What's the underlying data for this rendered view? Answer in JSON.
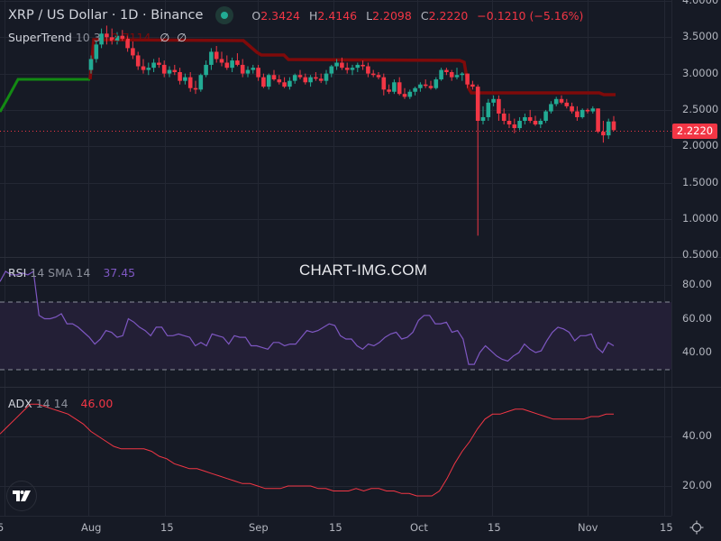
{
  "header": {
    "symbol_title": "XRP / US Dollar · 1D · Binance",
    "ohlc": {
      "o_label": "O",
      "o_value": "2.3424",
      "h_label": "H",
      "h_value": "2.4146",
      "l_label": "L",
      "l_value": "2.2098",
      "c_label": "C",
      "c_value": "2.2220",
      "change": "−0.1210 (−5.16%)"
    }
  },
  "indicators": {
    "supertrend": {
      "name": "SuperTrend",
      "params": "10 3",
      "value": "2.7114",
      "extra1": "∅",
      "extra2": "∅"
    },
    "rsi": {
      "name": "RSI",
      "params": "14 SMA 14",
      "value": "37.45"
    },
    "adx": {
      "name": "ADX",
      "params": "14 14",
      "value": "46.00"
    }
  },
  "watermark": "CHART-IMG.COM",
  "price_axis": {
    "labels": [
      "4.0000",
      "3.5000",
      "3.0000",
      "2.5000",
      "2.0000",
      "1.5000",
      "1.0000",
      "0.5000"
    ],
    "current_price_tag": "2.2220"
  },
  "rsi_axis": {
    "labels": [
      "80.00",
      "60.00",
      "40.00"
    ]
  },
  "adx_axis": {
    "labels": [
      "40.00",
      "20.00"
    ]
  },
  "time_axis": {
    "labels": [
      "5",
      "Aug",
      "15",
      "Sep",
      "15",
      "Oct",
      "15",
      "Nov",
      "15"
    ]
  },
  "colors": {
    "background": "#161a25",
    "up": "#22ab94",
    "down": "#f23645",
    "supertrend_up": "#138a13",
    "supertrend_down": "#7f0a0a",
    "rsi_line": "#7e57c2",
    "rsi_band": "#231f36",
    "adx_line": "#f23645",
    "grid": "#232733"
  },
  "chart_data": [
    {
      "type": "candlestick",
      "title": "XRP / US Dollar · 1D · Binance",
      "xlabel": "",
      "ylabel": "Price (USD)",
      "ylim": [
        0.5,
        4.0
      ],
      "x_ticks": [
        "5",
        "Aug",
        "15",
        "Sep",
        "15",
        "Oct",
        "15",
        "Nov",
        "15"
      ],
      "last": {
        "open": 2.3424,
        "high": 2.4146,
        "low": 2.2098,
        "close": 2.222,
        "change": -0.121,
        "change_pct": -5.16
      },
      "candles_ohlc_approx": [
        [
          3.05,
          3.25,
          3.0,
          3.2
        ],
        [
          3.2,
          3.45,
          3.15,
          3.4
        ],
        [
          3.4,
          3.62,
          3.35,
          3.55
        ],
        [
          3.55,
          3.66,
          3.4,
          3.5
        ],
        [
          3.5,
          3.62,
          3.4,
          3.45
        ],
        [
          3.45,
          3.57,
          3.4,
          3.52
        ],
        [
          3.52,
          3.6,
          3.45,
          3.48
        ],
        [
          3.48,
          3.55,
          3.3,
          3.35
        ],
        [
          3.35,
          3.45,
          3.2,
          3.25
        ],
        [
          3.25,
          3.3,
          3.05,
          3.1
        ],
        [
          3.1,
          3.2,
          3.0,
          3.05
        ],
        [
          3.05,
          3.15,
          2.98,
          3.08
        ],
        [
          3.08,
          3.2,
          3.02,
          3.15
        ],
        [
          3.15,
          3.22,
          3.08,
          3.12
        ],
        [
          3.12,
          3.18,
          2.95,
          3.0
        ],
        [
          3.0,
          3.1,
          2.95,
          3.05
        ],
        [
          3.05,
          3.12,
          2.98,
          3.02
        ],
        [
          3.02,
          3.08,
          2.85,
          2.9
        ],
        [
          2.9,
          3.0,
          2.85,
          2.95
        ],
        [
          2.95,
          3.02,
          2.75,
          2.8
        ],
        [
          2.8,
          2.9,
          2.72,
          2.78
        ],
        [
          2.78,
          3.0,
          2.75,
          2.98
        ],
        [
          2.98,
          3.18,
          2.95,
          3.12
        ],
        [
          3.12,
          3.35,
          3.05,
          3.3
        ],
        [
          3.3,
          3.38,
          3.15,
          3.2
        ],
        [
          3.2,
          3.3,
          3.1,
          3.15
        ],
        [
          3.15,
          3.25,
          3.05,
          3.08
        ],
        [
          3.08,
          3.22,
          3.02,
          3.18
        ],
        [
          3.18,
          3.28,
          3.1,
          3.12
        ],
        [
          3.12,
          3.2,
          2.95,
          3.0
        ],
        [
          3.0,
          3.1,
          2.95,
          3.05
        ],
        [
          3.05,
          3.12,
          3.0,
          3.08
        ],
        [
          3.08,
          3.12,
          2.9,
          2.95
        ],
        [
          2.95,
          3.0,
          2.8,
          2.82
        ],
        [
          2.82,
          3.0,
          2.78,
          2.98
        ],
        [
          2.98,
          3.05,
          2.9,
          2.92
        ],
        [
          2.92,
          2.98,
          2.85,
          2.88
        ],
        [
          2.88,
          2.95,
          2.8,
          2.82
        ],
        [
          2.82,
          2.95,
          2.78,
          2.9
        ],
        [
          2.9,
          3.0,
          2.86,
          2.98
        ],
        [
          2.98,
          3.05,
          2.92,
          2.95
        ],
        [
          2.95,
          3.0,
          2.85,
          2.88
        ],
        [
          2.88,
          2.98,
          2.82,
          2.95
        ],
        [
          2.95,
          3.02,
          2.9,
          2.93
        ],
        [
          2.93,
          3.0,
          2.87,
          2.9
        ],
        [
          2.9,
          3.05,
          2.85,
          3.0
        ],
        [
          3.0,
          3.12,
          2.95,
          3.1
        ],
        [
          3.1,
          3.2,
          3.05,
          3.15
        ],
        [
          3.15,
          3.22,
          3.05,
          3.08
        ],
        [
          3.08,
          3.15,
          3.0,
          3.05
        ],
        [
          3.05,
          3.12,
          2.98,
          3.08
        ],
        [
          3.08,
          3.15,
          3.02,
          3.12
        ],
        [
          3.12,
          3.18,
          3.05,
          3.1
        ],
        [
          3.1,
          3.15,
          2.95,
          3.0
        ],
        [
          3.0,
          3.05,
          2.95,
          2.98
        ],
        [
          2.98,
          3.02,
          2.92,
          2.95
        ],
        [
          2.95,
          3.0,
          2.7,
          2.78
        ],
        [
          2.78,
          2.85,
          2.72,
          2.75
        ],
        [
          2.75,
          2.92,
          2.72,
          2.88
        ],
        [
          2.88,
          2.95,
          2.7,
          2.72
        ],
        [
          2.72,
          2.8,
          2.65,
          2.68
        ],
        [
          2.68,
          2.78,
          2.65,
          2.75
        ],
        [
          2.75,
          2.82,
          2.7,
          2.8
        ],
        [
          2.8,
          2.88,
          2.75,
          2.85
        ],
        [
          2.85,
          2.92,
          2.8,
          2.83
        ],
        [
          2.83,
          2.9,
          2.78,
          2.8
        ],
        [
          2.8,
          2.95,
          2.78,
          2.92
        ],
        [
          2.92,
          3.08,
          2.9,
          3.05
        ],
        [
          3.05,
          3.08,
          2.98,
          3.02
        ],
        [
          3.02,
          3.05,
          2.9,
          2.95
        ],
        [
          2.95,
          3.08,
          2.92,
          2.98
        ],
        [
          2.98,
          3.02,
          2.9,
          3.0
        ],
        [
          3.0,
          3.0,
          2.8,
          2.85
        ],
        [
          2.85,
          2.9,
          2.78,
          2.82
        ],
        [
          2.82,
          2.85,
          0.77,
          2.35
        ],
        [
          2.35,
          2.55,
          2.3,
          2.4
        ],
        [
          2.4,
          2.65,
          2.35,
          2.6
        ],
        [
          2.6,
          2.7,
          2.55,
          2.65
        ],
        [
          2.65,
          2.7,
          2.35,
          2.45
        ],
        [
          2.45,
          2.52,
          2.3,
          2.35
        ],
        [
          2.35,
          2.45,
          2.25,
          2.3
        ],
        [
          2.3,
          2.38,
          2.18,
          2.25
        ],
        [
          2.25,
          2.4,
          2.22,
          2.35
        ],
        [
          2.35,
          2.45,
          2.3,
          2.4
        ],
        [
          2.4,
          2.5,
          2.32,
          2.35
        ],
        [
          2.35,
          2.42,
          2.28,
          2.3
        ],
        [
          2.3,
          2.38,
          2.25,
          2.35
        ],
        [
          2.35,
          2.5,
          2.32,
          2.48
        ],
        [
          2.48,
          2.62,
          2.45,
          2.58
        ],
        [
          2.58,
          2.68,
          2.55,
          2.65
        ],
        [
          2.65,
          2.7,
          2.58,
          2.6
        ],
        [
          2.6,
          2.65,
          2.52,
          2.55
        ],
        [
          2.55,
          2.6,
          2.45,
          2.48
        ],
        [
          2.48,
          2.55,
          2.35,
          2.4
        ],
        [
          2.4,
          2.52,
          2.38,
          2.5
        ],
        [
          2.5,
          2.52,
          2.45,
          2.48
        ],
        [
          2.48,
          2.55,
          2.45,
          2.52
        ],
        [
          2.52,
          2.52,
          2.18,
          2.2
        ],
        [
          2.2,
          2.35,
          2.05,
          2.15
        ],
        [
          2.15,
          2.38,
          2.1,
          2.34
        ],
        [
          2.3424,
          2.4146,
          2.2098,
          2.222
        ]
      ],
      "supertrend": {
        "segments": [
          {
            "trend": "up",
            "approx_values": [
              2.3,
              2.4,
              2.8,
              2.88,
              2.88,
              2.92,
              2.92
            ]
          },
          {
            "trend": "down",
            "approx_values": [
              3.45,
              3.45,
              3.45,
              3.4,
              3.3,
              3.2,
              3.18,
              3.16,
              3.14,
              3.14,
              3.14,
              3.14
            ]
          },
          {
            "trend": "down",
            "approx_values": [
              2.75,
              2.75,
              2.75,
              2.75,
              2.72,
              2.71
            ]
          }
        ],
        "last_value": 2.7114
      },
      "current_price_line": 2.222
    },
    {
      "type": "line",
      "title": "RSI 14 SMA 14",
      "ylim": [
        20,
        90
      ],
      "y_ticks": [
        80,
        60,
        40
      ],
      "bands": {
        "upper": 70,
        "lower": 30
      },
      "series": [
        {
          "name": "RSI",
          "last": 37.45,
          "values_approx": [
            82,
            88,
            86,
            86,
            87,
            86,
            88,
            62,
            60,
            60,
            61,
            63,
            57,
            57,
            55,
            52,
            49,
            45,
            48,
            53,
            52,
            49,
            50,
            60,
            58,
            55,
            53,
            50,
            55,
            55,
            50,
            50,
            51,
            50,
            49,
            44,
            46,
            44,
            51,
            50,
            49,
            45,
            50,
            49,
            49,
            44,
            44,
            43,
            42,
            46,
            46,
            44,
            45,
            45,
            49,
            53,
            52,
            53,
            55,
            57,
            56,
            50,
            48,
            48,
            44,
            42,
            45,
            44,
            46,
            49,
            51,
            52,
            48,
            49,
            52,
            59,
            62,
            62,
            57,
            57,
            58,
            52,
            53,
            48,
            33,
            33,
            40,
            44,
            41,
            38,
            36,
            35,
            38,
            40,
            45,
            42,
            40,
            41,
            47,
            52,
            55,
            54,
            52,
            47,
            50,
            50,
            51,
            43,
            40,
            46,
            44
          ]
        }
      ]
    },
    {
      "type": "line",
      "title": "ADX 14 14",
      "ylim": [
        12,
        58
      ],
      "y_ticks": [
        40,
        20
      ],
      "series": [
        {
          "name": "ADX",
          "last": 46.0,
          "values_approx": [
            41,
            44,
            47,
            50,
            53,
            53,
            52,
            51,
            50,
            49,
            47,
            45,
            42,
            40,
            38,
            36,
            35,
            35,
            35,
            35,
            34,
            32,
            31,
            29,
            28,
            27,
            27,
            26,
            25,
            24,
            23,
            22,
            21,
            21,
            20,
            19,
            19,
            19,
            20,
            20,
            20,
            20,
            19,
            19,
            18,
            18,
            18,
            19,
            18,
            19,
            19,
            18,
            18,
            17,
            17,
            16,
            16,
            16,
            18,
            23,
            29,
            34,
            38,
            43,
            47,
            49,
            49,
            50,
            51,
            51,
            50,
            49,
            48,
            47,
            47,
            47,
            47,
            47,
            48,
            48,
            49,
            49
          ]
        }
      ]
    }
  ]
}
